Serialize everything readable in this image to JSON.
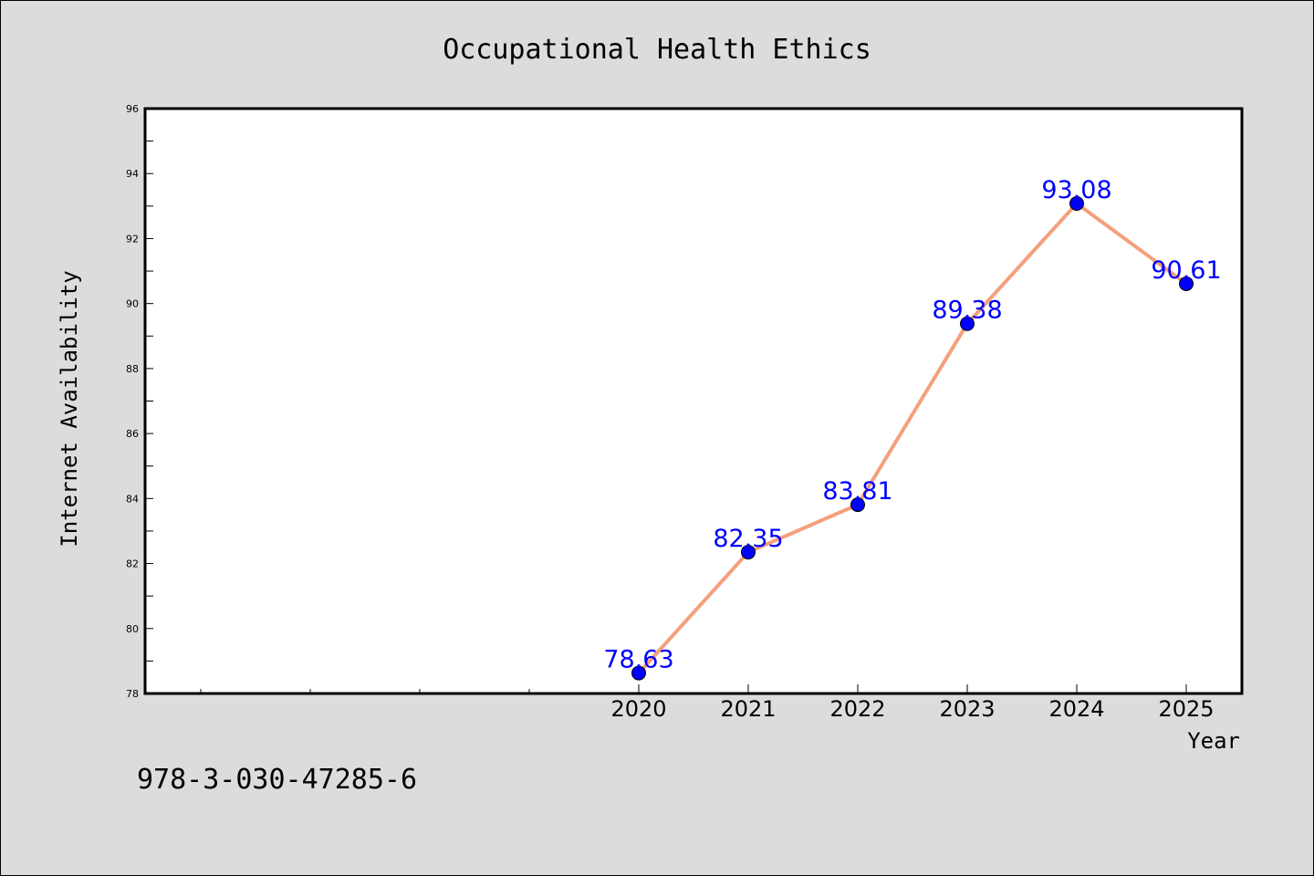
{
  "chart_data": {
    "type": "line",
    "title": "Occupational Health Ethics",
    "xlabel": "Year",
    "ylabel": "Internet Availability",
    "x": [
      "2020",
      "2021",
      "2022",
      "2023",
      "2024",
      "2025"
    ],
    "series": [
      {
        "values": [
          78.63,
          82.35,
          83.81,
          89.38,
          93.08,
          90.61
        ],
        "labels": [
          "78.63",
          "82.35",
          "83.81",
          "89.38",
          "93.08",
          "90.61"
        ],
        "line_color": "#f4a07c",
        "marker_color": "#0000ff"
      }
    ],
    "ylim": [
      78,
      96
    ],
    "yticks": [
      "78",
      "80",
      "82",
      "84",
      "86",
      "88",
      "90",
      "92",
      "94",
      "96"
    ],
    "grid": false,
    "legend": "none"
  },
  "footnote": "978-3-030-47285-6",
  "colors": {
    "background": "#dcdcdc",
    "plot_area": "#ffffff",
    "data_label": "#0000ff"
  }
}
